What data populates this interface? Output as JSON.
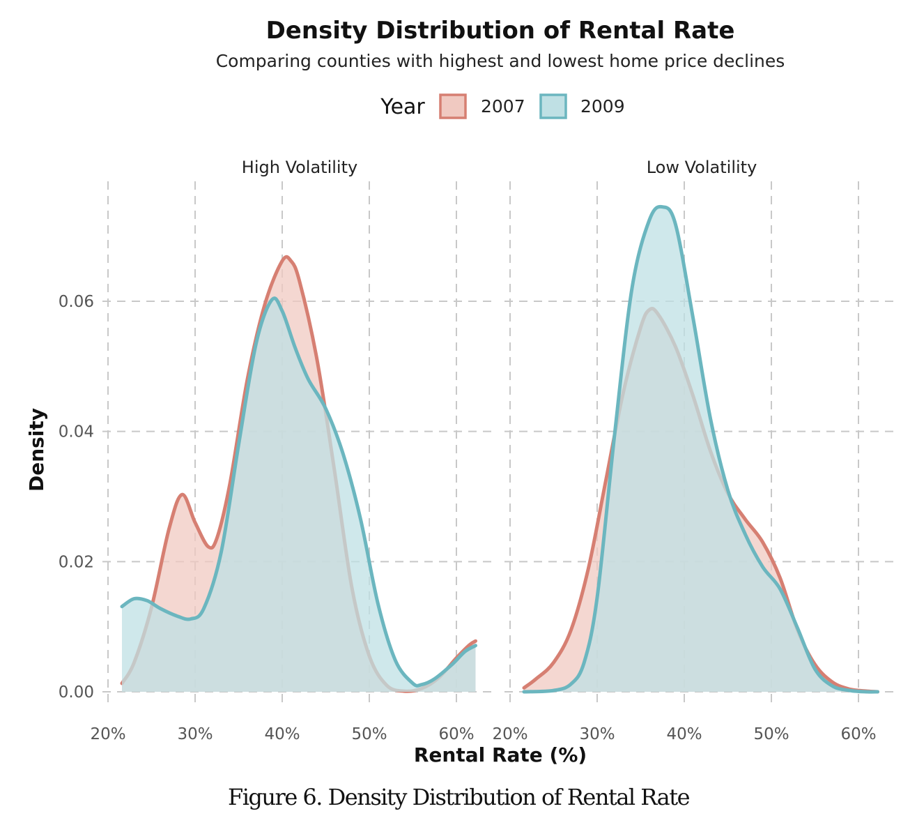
{
  "chart_data": {
    "type": "area",
    "title": "Density Distribution of Rental Rate",
    "subtitle": "Comparing counties with highest and lowest home price declines",
    "xlabel": "Rental Rate (%)",
    "ylabel": "Density",
    "xlim": [
      20,
      62
    ],
    "ylim": [
      0,
      0.076
    ],
    "x_ticks": [
      20,
      30,
      40,
      50,
      60
    ],
    "x_tick_labels": [
      "20%",
      "30%",
      "40%",
      "50%",
      "60%"
    ],
    "y_ticks": [
      0,
      0.02,
      0.04,
      0.06
    ],
    "y_tick_labels": [
      "0.00",
      "0.02",
      "0.04",
      "0.06"
    ],
    "grid": true,
    "legend": {
      "title": "Year",
      "position": "top",
      "entries": [
        {
          "label": "2007",
          "stroke": "#D67F72",
          "fill": "#F0C9C1"
        },
        {
          "label": "2009",
          "stroke": "#6BB6BF",
          "fill": "#BFE0E4"
        }
      ]
    },
    "facets": [
      {
        "label": "High Volatility",
        "series": [
          {
            "name": "2007",
            "points": [
              [
                21.6,
                0.0013
              ],
              [
                23,
                0.0045
              ],
              [
                25,
                0.013
              ],
              [
                27,
                0.025
              ],
              [
                28.5,
                0.0303
              ],
              [
                30,
                0.026
              ],
              [
                31.5,
                0.0223
              ],
              [
                32.5,
                0.0236
              ],
              [
                34,
                0.032
              ],
              [
                36,
                0.048
              ],
              [
                38,
                0.0595
              ],
              [
                40,
                0.0662
              ],
              [
                41,
                0.0662
              ],
              [
                42,
                0.063
              ],
              [
                44,
                0.051
              ],
              [
                46,
                0.034
              ],
              [
                48,
                0.016
              ],
              [
                50,
                0.0055
              ],
              [
                52,
                0.001
              ],
              [
                54,
                0.0001
              ],
              [
                56,
                0.0005
              ],
              [
                58,
                0.0022
              ],
              [
                60,
                0.0052
              ],
              [
                61.5,
                0.0072
              ],
              [
                62.2,
                0.0078
              ]
            ]
          },
          {
            "name": "2009",
            "points": [
              [
                21.6,
                0.0131
              ],
              [
                23,
                0.0143
              ],
              [
                24.5,
                0.014
              ],
              [
                26,
                0.0128
              ],
              [
                28,
                0.0116
              ],
              [
                29.5,
                0.0112
              ],
              [
                31,
                0.0128
              ],
              [
                33,
                0.0215
              ],
              [
                35,
                0.038
              ],
              [
                37,
                0.0535
              ],
              [
                38.8,
                0.0602
              ],
              [
                40,
                0.0585
              ],
              [
                41.5,
                0.0528
              ],
              [
                43,
                0.048
              ],
              [
                45,
                0.0435
              ],
              [
                47,
                0.0365
              ],
              [
                49,
                0.0265
              ],
              [
                51,
                0.0135
              ],
              [
                53,
                0.0048
              ],
              [
                55,
                0.0013
              ],
              [
                56,
                0.0011
              ],
              [
                57.5,
                0.002
              ],
              [
                59.5,
                0.0042
              ],
              [
                61,
                0.0062
              ],
              [
                62.2,
                0.0071
              ]
            ]
          }
        ]
      },
      {
        "label": "Low Volatility",
        "series": [
          {
            "name": "2007",
            "points": [
              [
                21.6,
                0.0006
              ],
              [
                23,
                0.002
              ],
              [
                25,
                0.0045
              ],
              [
                27,
                0.0095
              ],
              [
                29,
                0.019
              ],
              [
                31,
                0.0325
              ],
              [
                33,
                0.046
              ],
              [
                35,
                0.056
              ],
              [
                36,
                0.0587
              ],
              [
                37,
                0.058
              ],
              [
                39,
                0.053
              ],
              [
                41,
                0.0455
              ],
              [
                43,
                0.037
              ],
              [
                45,
                0.0305
              ],
              [
                47,
                0.0265
              ],
              [
                49,
                0.023
              ],
              [
                51,
                0.0175
              ],
              [
                53,
                0.0095
              ],
              [
                55,
                0.0042
              ],
              [
                57,
                0.0015
              ],
              [
                59,
                0.0004
              ],
              [
                61,
                0.0001
              ],
              [
                62.2,
                0
              ]
            ]
          },
          {
            "name": "2009",
            "points": [
              [
                21.6,
                0
              ],
              [
                25,
                0.0002
              ],
              [
                27,
                0.0012
              ],
              [
                28.5,
                0.0045
              ],
              [
                30,
                0.0145
              ],
              [
                32,
                0.0395
              ],
              [
                34,
                0.062
              ],
              [
                36,
                0.0725
              ],
              [
                37.5,
                0.0745
              ],
              [
                39,
                0.0718
              ],
              [
                41,
                0.0575
              ],
              [
                43,
                0.042
              ],
              [
                45,
                0.031
              ],
              [
                47,
                0.0242
              ],
              [
                49,
                0.0192
              ],
              [
                51,
                0.0158
              ],
              [
                53,
                0.0098
              ],
              [
                55,
                0.0035
              ],
              [
                57,
                0.0009
              ],
              [
                59,
                0.0002
              ],
              [
                61,
                0
              ],
              [
                62.2,
                0
              ]
            ]
          }
        ]
      }
    ]
  },
  "caption": "Figure 6. Density Distribution of Rental Rate"
}
